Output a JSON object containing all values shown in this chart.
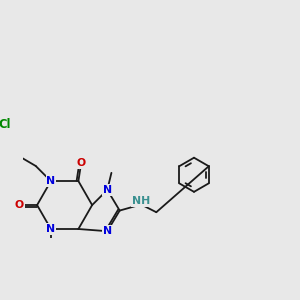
{
  "bg_color": "#e8e8e8",
  "bond_color": "#1a1a1a",
  "N_color": "#0000dd",
  "O_color": "#cc0000",
  "Cl_color": "#008800",
  "NH_color": "#3a9090",
  "lw": 1.3,
  "fs": 7.8,
  "figsize": [
    3.0,
    3.0
  ],
  "dpi": 100,
  "xlim": [
    -1.5,
    8.5
  ],
  "ylim": [
    -1.2,
    5.2
  ]
}
